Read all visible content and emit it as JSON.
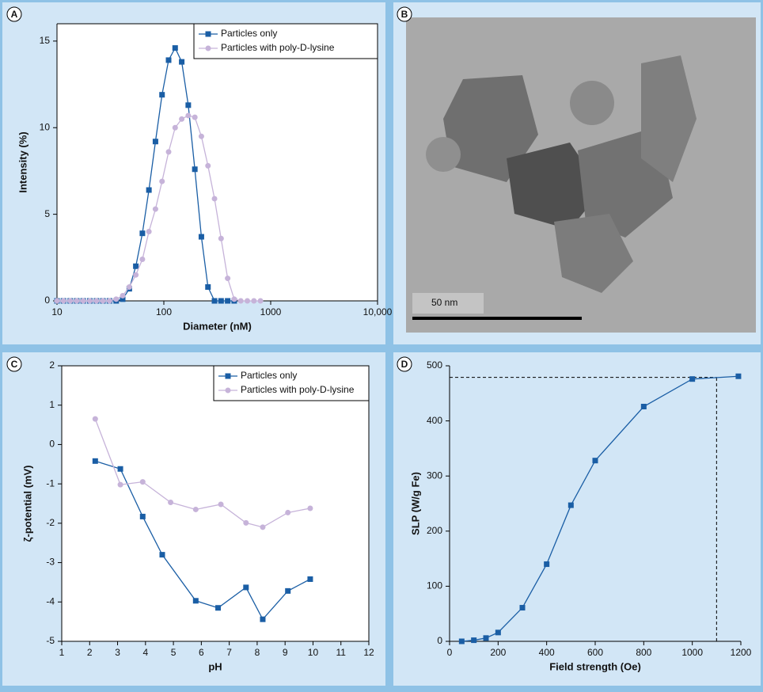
{
  "chart_data": [
    {
      "type": "line",
      "panel": "A",
      "xlabel": "Diameter (nM)",
      "ylabel": "Intensity (%)",
      "xscale": "log",
      "legend": "upper right",
      "x": [
        10,
        11.5,
        13.3,
        15.3,
        17.6,
        20.3,
        23.4,
        26.9,
        31.0,
        35.8,
        41.2,
        47.5,
        54.7,
        63.0,
        72.5,
        83.5,
        96.2,
        110.8,
        127.6,
        147.0,
        169.3,
        195.0,
        224.6,
        258.8,
        298.1,
        343.4,
        395.6,
        455.7,
        525.0,
        604.7,
        696.6,
        802.4
      ],
      "xlim": [
        10,
        10000
      ],
      "xticks": [
        10,
        100,
        1000,
        {
          "value": 10000,
          "label": "10,000"
        }
      ],
      "ylim": [
        0,
        16
      ],
      "yticks": [
        0,
        5,
        10,
        15
      ],
      "series": [
        {
          "name": "Particles only",
          "color": "#1a5ea5",
          "marker": "square",
          "values": [
            0,
            0,
            0,
            0,
            0,
            0,
            0,
            0,
            0,
            0,
            0.1,
            0.7,
            2.0,
            3.9,
            6.4,
            9.2,
            11.9,
            13.9,
            14.6,
            13.8,
            11.3,
            7.6,
            3.7,
            0.8,
            0,
            0,
            0,
            0,
            null,
            null,
            null,
            null
          ]
        },
        {
          "name": "Particles with poly-D-lysine",
          "color": "#c6b3d9",
          "marker": "circle",
          "values": [
            0,
            0,
            0,
            0,
            0,
            0,
            0,
            0,
            0,
            0.1,
            0.3,
            0.8,
            1.5,
            2.4,
            4.0,
            5.3,
            6.9,
            8.6,
            10.0,
            10.5,
            10.7,
            10.6,
            9.5,
            7.8,
            5.9,
            3.6,
            1.3,
            0.1,
            0,
            0,
            0,
            0
          ]
        }
      ]
    },
    {
      "type": "image",
      "panel": "B",
      "scale_bar_label": "50 nm"
    },
    {
      "type": "line",
      "panel": "C",
      "xlabel": "pH",
      "ylabel": "ζ-potential (mV)",
      "legend": "upper right",
      "xlim": [
        1,
        12
      ],
      "xticks": [
        1,
        2,
        3,
        4,
        5,
        6,
        7,
        8,
        9,
        10,
        11,
        12
      ],
      "ylim": [
        -5,
        2
      ],
      "yticks": [
        -5,
        -4,
        -3,
        -2,
        -1,
        0,
        1,
        2
      ],
      "series": [
        {
          "name": "Particles only",
          "color": "#1a5ea5",
          "marker": "square",
          "x": [
            2.2,
            3.1,
            3.9,
            4.6,
            5.8,
            6.6,
            7.6,
            8.2,
            9.1,
            9.9
          ],
          "values": [
            -0.42,
            -0.62,
            -1.83,
            -2.8,
            -3.97,
            -4.15,
            -3.63,
            -4.44,
            -3.72,
            -3.42
          ]
        },
        {
          "name": "Particles with poly-D-lysine",
          "color": "#c6b3d9",
          "marker": "circle",
          "x": [
            2.2,
            3.1,
            3.9,
            4.9,
            5.8,
            6.7,
            7.6,
            8.2,
            9.1,
            9.9
          ],
          "values": [
            0.65,
            -1.02,
            -0.95,
            -1.47,
            -1.65,
            -1.52,
            -1.99,
            -2.1,
            -1.73,
            -1.62
          ]
        }
      ]
    },
    {
      "type": "line",
      "panel": "D",
      "xlabel": "Field strength (Oe)",
      "ylabel": "SLP (W/g Fe)",
      "xlim": [
        0,
        1200
      ],
      "xticks": [
        0,
        200,
        400,
        600,
        800,
        1000,
        1200
      ],
      "ylim": [
        0,
        500
      ],
      "yticks": [
        0,
        100,
        200,
        300,
        400,
        500
      ],
      "reference_lines": [
        {
          "axis": "y",
          "value": 479
        },
        {
          "axis": "x",
          "value": 1100
        }
      ],
      "series": [
        {
          "color": "#1a5ea5",
          "marker": "square",
          "x": [
            50,
            100,
            150,
            200,
            300,
            400,
            500,
            600,
            800,
            1000,
            1190
          ],
          "values": [
            0,
            2,
            6,
            16,
            61,
            140,
            247,
            328,
            426,
            476,
            481
          ]
        }
      ]
    }
  ]
}
